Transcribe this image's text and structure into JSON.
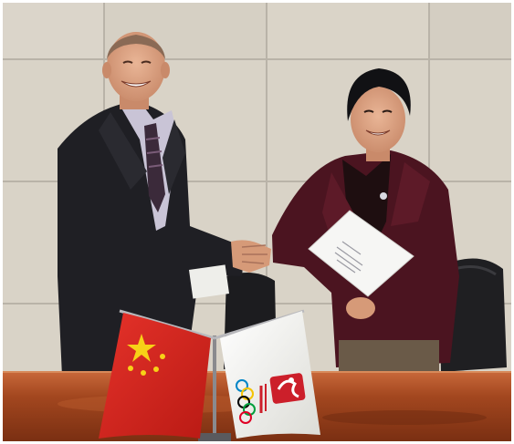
{
  "scene": {
    "document_text": "",
    "colors": {
      "wall": "#d9d3c7",
      "wall_joint": "#b9b3a8",
      "table": "#a3471f",
      "table_highlight": "#c8683a",
      "man_suit": "#1f1f24",
      "woman_jacket": "#4b1420",
      "china_red": "#d9261c",
      "china_star": "#f7d117",
      "olympic_flag_bg": "#f5f5f2",
      "beijing_red": "#cc1f2a",
      "chair": "#202022"
    }
  }
}
